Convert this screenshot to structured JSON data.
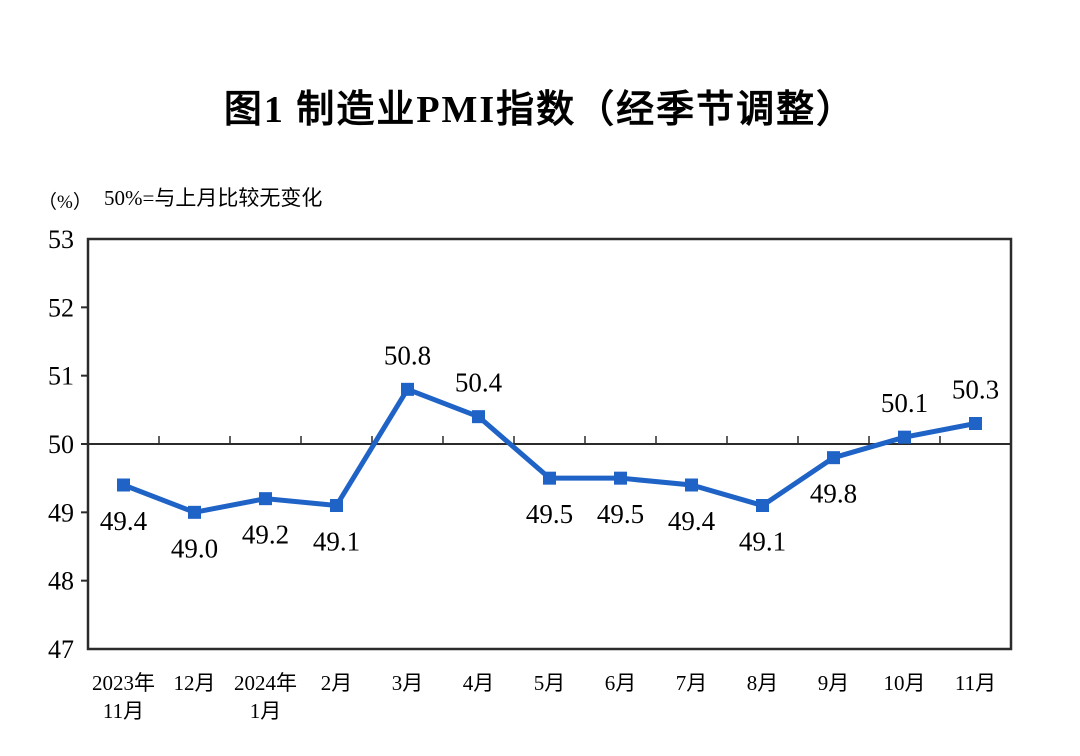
{
  "page": {
    "title": "图1  制造业PMI指数（经季节调整）",
    "y_axis_unit": "（%）",
    "reference_note": "50%=与上月比较无变化"
  },
  "colors": {
    "line": "#1F63C6",
    "axis": "#2b2b2b",
    "text": "#000000"
  },
  "chart_data": {
    "type": "line",
    "title": "图1  制造业PMI指数（经季节调整）",
    "subtitle": "50%=与上月比较无变化",
    "ylabel": "（%）",
    "categories": [
      "2023年\n11月",
      "12月",
      "2024年\n1月",
      "2月",
      "3月",
      "4月",
      "5月",
      "6月",
      "7月",
      "8月",
      "9月",
      "10月",
      "11月"
    ],
    "values": [
      49.4,
      49.0,
      49.2,
      49.1,
      50.8,
      50.4,
      49.5,
      49.5,
      49.4,
      49.1,
      49.8,
      50.1,
      50.3
    ],
    "label_positions": [
      "below",
      "below",
      "below",
      "below",
      "above",
      "above",
      "below",
      "below",
      "below",
      "below",
      "below",
      "above",
      "above"
    ],
    "ylim": [
      47,
      53
    ],
    "yticks": [
      47,
      48,
      49,
      50,
      51,
      52,
      53
    ],
    "reference_line": 50,
    "marker": "square",
    "grid": false,
    "legend": "none"
  }
}
